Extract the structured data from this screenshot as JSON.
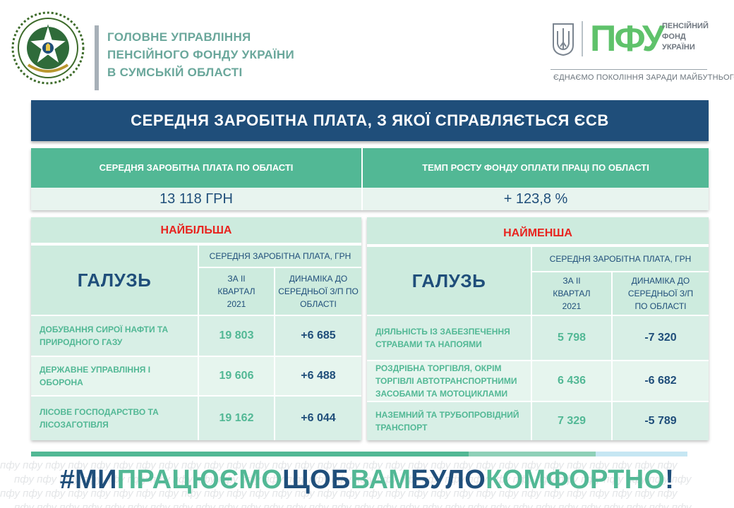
{
  "header": {
    "org_name_lines": [
      "ГОЛОВНЕ УПРАВЛІННЯ",
      "ПЕНСІЙНОГО ФОНДУ УКРАЇНИ",
      "В СУМСЬКІЙ  ОБЛАСТІ"
    ],
    "logo_text": "ПФУ",
    "logo_sub_lines": [
      "ПЕНСІЙНИЙ",
      "ФОНД",
      "УКРАЇНИ"
    ],
    "slogan": "ЄДНАЄМО ПОКОЛІННЯ ЗАРАДИ МАЙБУТНЬОГО"
  },
  "title": "СЕРЕДНЯ ЗАРОБІТНА ПЛАТА, З ЯКОЇ СПРАВЛЯЄТЬСЯ  ЄСВ",
  "summary": {
    "left_header": "СЕРЕДНЯ ЗАРОБІТНА ПЛАТА ПО ОБЛАСТІ",
    "left_value": "13 118 ГРН",
    "right_header": "ТЕМП РОСТУ ФОНДУ ОПЛАТИ ПРАЦІ ПО ОБЛАСТІ",
    "right_value": "+ 123,8 %"
  },
  "left_table": {
    "caption": "НАЙБІЛЬША",
    "galuz": "ГАЛУЗЬ",
    "salary_header": "СЕРЕДНЯ ЗАРОБІТНА ПЛАТА, ГРН",
    "quarter_header": "ЗА ІІ КВАРТАЛ 2021",
    "dynamics_header": "ДИНАМІКА ДО СЕРЕДНЬОЇ З/П ПО ОБЛАСТІ",
    "rows": [
      {
        "name": "ДОБУВАННЯ СИРОЇ НАФТИ ТА ПРИРОДНОГО ГАЗУ",
        "value": "19 803",
        "dynamics": "+6 685"
      },
      {
        "name": "ДЕРЖАВНЕ УПРАВЛІННЯ І ОБОРОНА",
        "value": "19 606",
        "dynamics": "+6 488"
      },
      {
        "name": "ЛІСОВЕ ГОСПОДАРСТВО ТА ЛІСОЗАГОТІВЛЯ",
        "value": "19 162",
        "dynamics": "+6 044"
      }
    ]
  },
  "right_table": {
    "caption": "НАЙМЕНША",
    "galuz": "ГАЛУЗЬ",
    "salary_header": "СЕРЕДНЯ ЗАРОБІТНА ПЛАТА, ГРН",
    "quarter_header": "ЗА ІІ КВАРТАЛ 2021",
    "dynamics_header": "ДИНАМІКА ДО СЕРЕДНЬОЇ З/П ПО ОБЛАСТІ",
    "rows": [
      {
        "name": "ДІЯЛЬНІСТЬ ІЗ ЗАБЕЗПЕЧЕННЯ СТРАВАМИ ТА НАПОЯМИ",
        "value": "5 798",
        "dynamics": "-7 320"
      },
      {
        "name": "РОЗДРІБНА ТОРГІВЛЯ, ОКРІМ ТОРГІВЛІ АВТОТРАНСПОРТНИМИ ЗАСОБАМИ ТА МОТОЦИКЛАМИ",
        "value": "6 436",
        "dynamics": "-6 682"
      },
      {
        "name": "НАЗЕМНИЙ ТА ТРУБОПРОВІДНИЙ ТРАНСПОРТ",
        "value": "7 329",
        "dynamics": "-5 789"
      }
    ]
  },
  "hashtag": {
    "parts": [
      {
        "text": "#МИ",
        "color": "blue"
      },
      {
        "text": "ПРАЦЮЄМО",
        "color": "green"
      },
      {
        "text": "ЩОБ",
        "color": "blue"
      },
      {
        "text": "ВАМ",
        "color": "green"
      },
      {
        "text": "БУЛО",
        "color": "blue"
      },
      {
        "text": "КОМФОРТНО",
        "color": "green"
      },
      {
        "text": "!",
        "color": "blue"
      }
    ]
  },
  "watermark_text": "пфу",
  "colors": {
    "navy": "#1f4e7a",
    "green": "#52b895",
    "red": "#e8241f",
    "light_green": "#cdebde"
  }
}
